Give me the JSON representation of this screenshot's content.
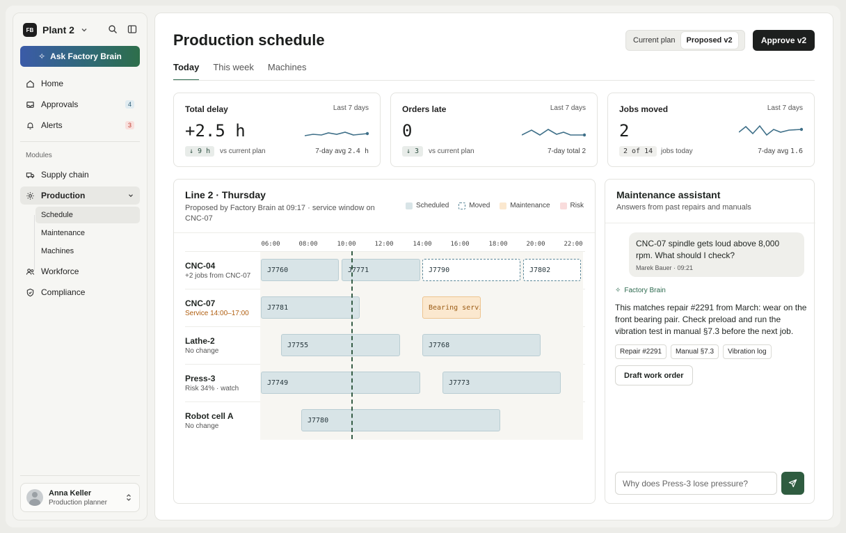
{
  "sidebar": {
    "workspace_logo": "FB",
    "workspace_name": "Plant 2",
    "ask_button": "Ask Factory Brain",
    "nav": [
      {
        "label": "Home",
        "icon": "home-icon"
      },
      {
        "label": "Approvals",
        "icon": "inbox-icon",
        "badge": "4"
      },
      {
        "label": "Alerts",
        "icon": "bell-icon",
        "badge": "3"
      }
    ],
    "modules_label": "Modules",
    "modules": [
      {
        "label": "Supply chain",
        "icon": "truck-icon"
      },
      {
        "label": "Production",
        "icon": "gear-icon",
        "expanded": true
      },
      {
        "label": "Workforce",
        "icon": "people-icon"
      },
      {
        "label": "Compliance",
        "icon": "shield-icon"
      }
    ],
    "production_sub": [
      "Schedule",
      "Maintenance",
      "Machines"
    ],
    "user": {
      "name": "Anna Keller",
      "role": "Production planner"
    }
  },
  "header": {
    "title": "Production schedule",
    "plan_options": [
      "Current plan",
      "Proposed v2"
    ],
    "selected_plan": "Proposed v2",
    "approve_button": "Approve v2",
    "tabs": [
      "Today",
      "This week",
      "Machines"
    ],
    "active_tab": "Today"
  },
  "kpis": [
    {
      "label": "Total delay",
      "range": "Last 7 days",
      "value": "+2.5 h",
      "chip": "↓ 9 h",
      "chip_note": "vs current plan",
      "foot_prefix": "7-day avg",
      "foot_value": "2.4 h"
    },
    {
      "label": "Orders late",
      "range": "Last 7 days",
      "value": "0",
      "chip": "↓ 3",
      "chip_note": "vs current plan",
      "foot_prefix": "7-day total",
      "foot_value": "2"
    },
    {
      "label": "Jobs moved",
      "range": "Last 7 days",
      "value": "2",
      "chip": "2 of 14",
      "chip_note": "jobs today",
      "foot_prefix": "7-day avg",
      "foot_value": "1.6"
    }
  ],
  "gantt": {
    "title": "Line 2 · Thursday",
    "subtitle": "Proposed by Factory Brain at 09:17 · service window on CNC-07",
    "legend": [
      "Scheduled",
      "Moved",
      "Maintenance",
      "Risk"
    ],
    "hours": [
      "06:00",
      "08:00",
      "10:00",
      "12:00",
      "14:00",
      "16:00",
      "18:00",
      "20:00",
      "22:00"
    ],
    "rows": [
      {
        "name": "CNC-04",
        "note": "+2 jobs from CNC-07"
      },
      {
        "name": "CNC-07",
        "note": "Service 14:00–17:00"
      },
      {
        "name": "Lathe-2",
        "note": "No change"
      },
      {
        "name": "Press-3",
        "note": "Risk 34% · watch"
      },
      {
        "name": "Robot cell A",
        "note": "No change"
      }
    ],
    "jobs": [
      "J7760",
      "J7771",
      "J7790",
      "J7802",
      "J7781",
      "Bearing servi",
      "J7755",
      "J7768",
      "J7749",
      "J7773",
      "J7780"
    ]
  },
  "assistant": {
    "title": "Maintenance assistant",
    "subtitle": "Answers from past repairs and manuals",
    "user_message": "CNC-07 spindle gets loud above 8,000 rpm. What should I check?",
    "user_meta": "Marek Bauer · 09:21",
    "bot_label": "Factory Brain",
    "answer": "This matches repair #2291 from March: wear on the front bearing pair. Check preload and run the vibration test in manual §7.3 before the next job.",
    "citations": [
      "Repair #2291",
      "Manual §7.3",
      "Vibration log"
    ],
    "draft_button": "Draft work order",
    "input_placeholder": "Why does Press-3 lose pressure?"
  },
  "colors": {
    "accent": "#2d6a4f",
    "scheduled": "#d8e4e7",
    "moved_border": "#5b8798",
    "maintenance": "#fbe8cf",
    "risk": "#f9dcdc"
  }
}
